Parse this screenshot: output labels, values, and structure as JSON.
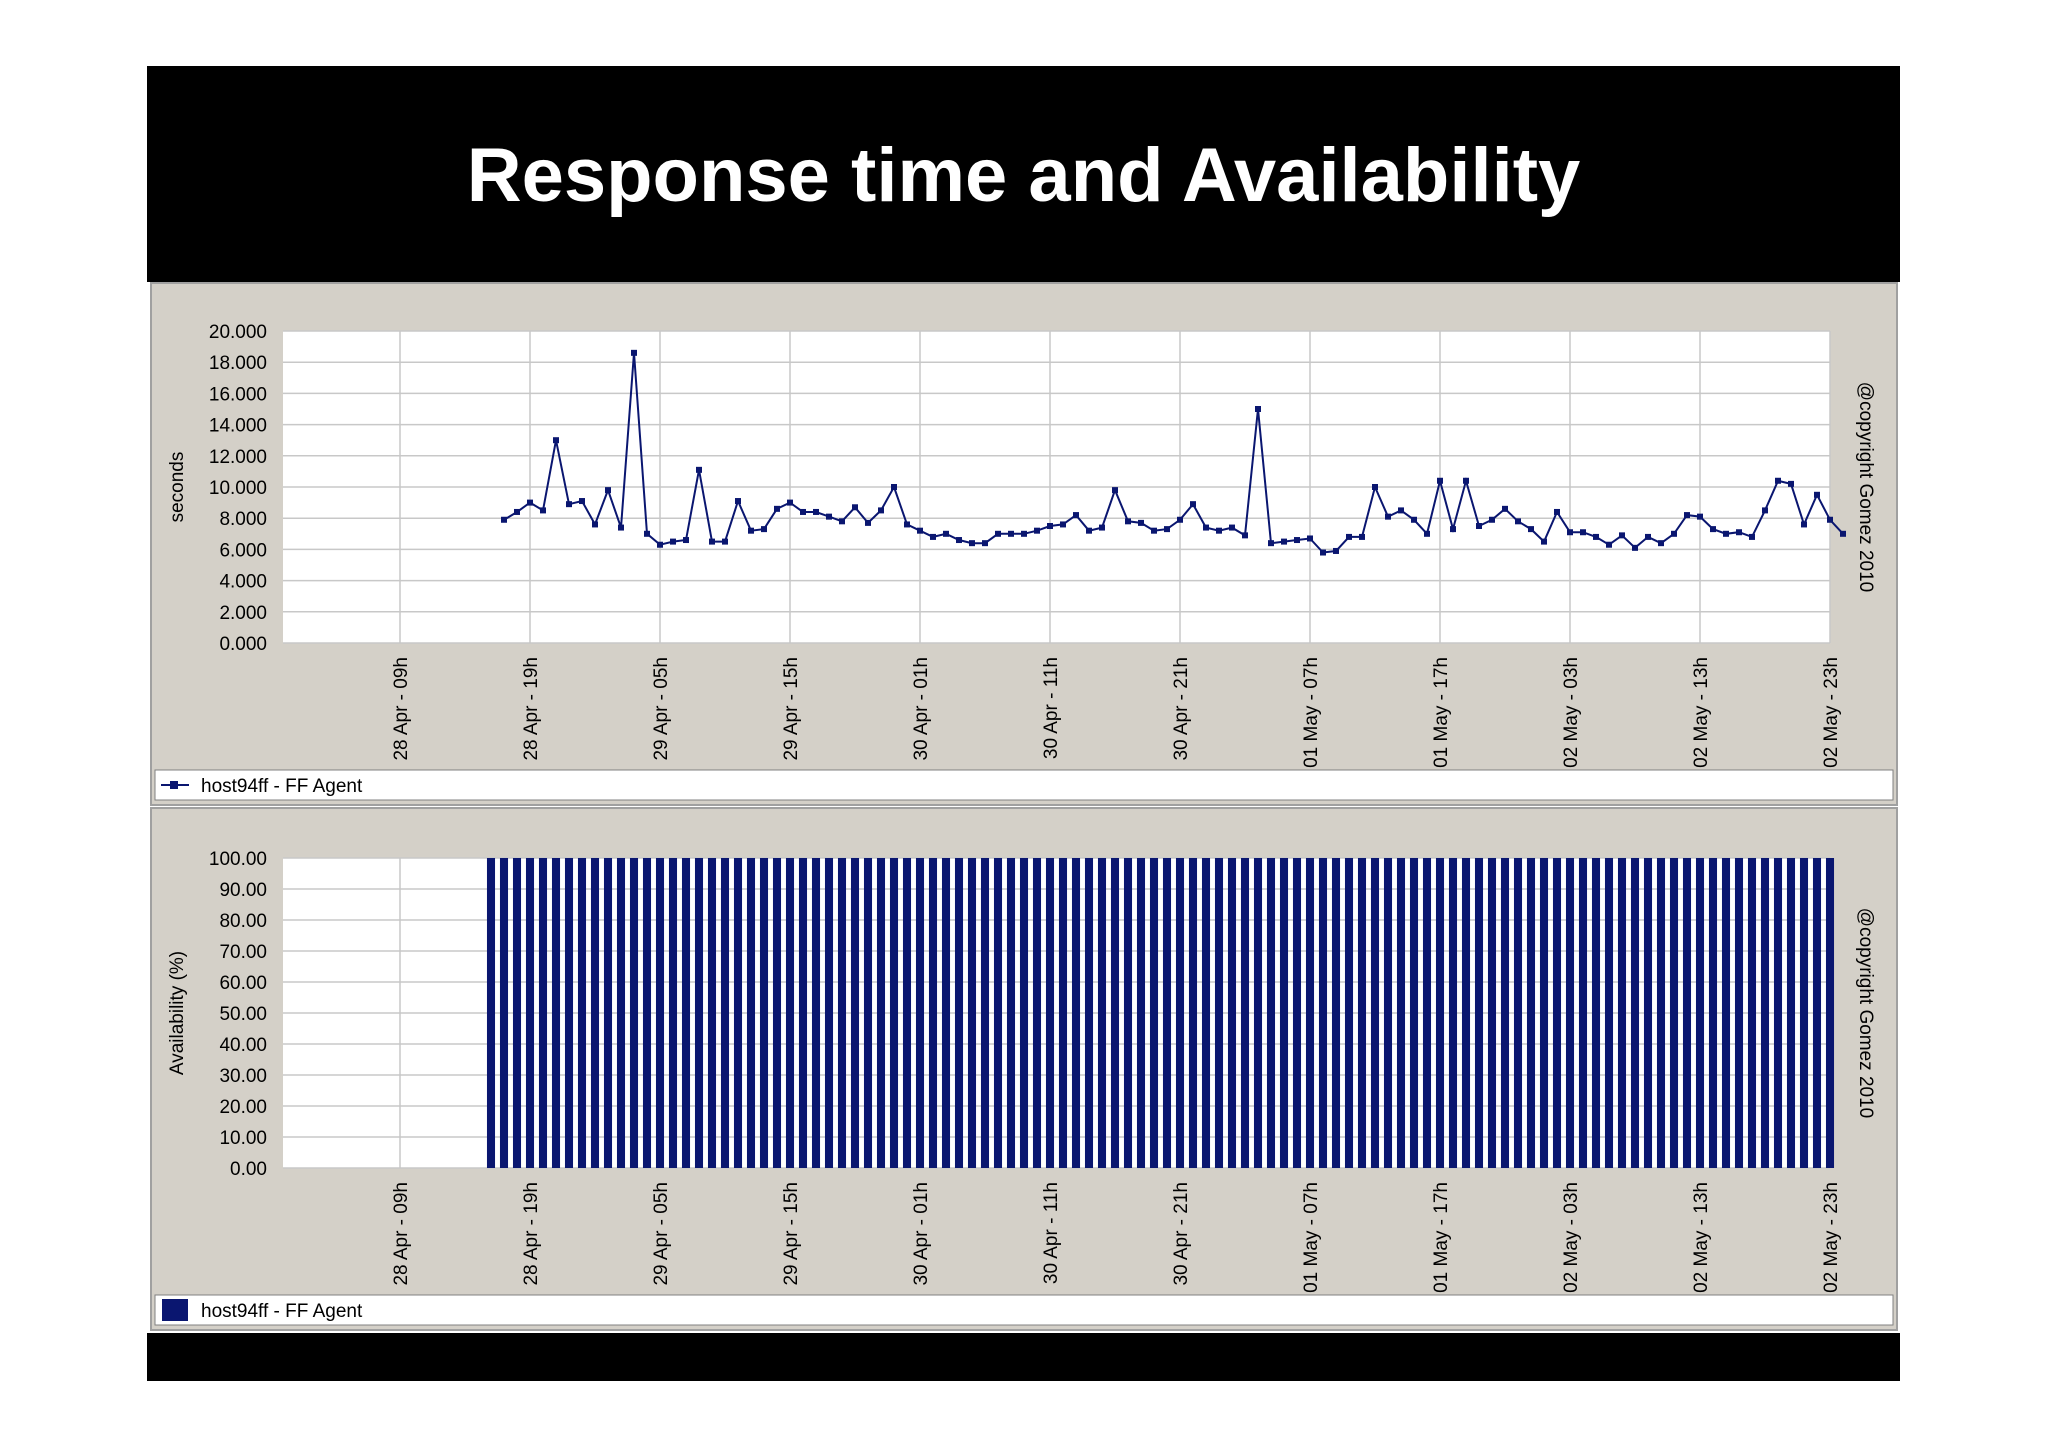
{
  "slide": {
    "title": "Response time and Availability"
  },
  "colors": {
    "series": "#0a1670",
    "panel": "#d4d0c8",
    "grid": "#c8c8c8"
  },
  "chart_data": [
    {
      "type": "line",
      "ylabel": "seconds",
      "ylim": [
        0,
        20
      ],
      "yticks": [
        "20.000",
        "18.000",
        "16.000",
        "14.000",
        "12.000",
        "10.000",
        "8.000",
        "6.000",
        "4.000",
        "2.000",
        "0.000"
      ],
      "xticks": [
        "28 Apr - 09h",
        "28 Apr - 19h",
        "29 Apr - 05h",
        "29 Apr - 15h",
        "30 Apr - 01h",
        "30 Apr - 11h",
        "30 Apr - 21h",
        "01 May - 07h",
        "01 May - 17h",
        "02 May - 03h",
        "02 May - 13h",
        "02 May - 23h"
      ],
      "x_start": "28 Apr - 00h",
      "x_end": "02 May - 23h",
      "copyright": "@copyright Gomez 2010",
      "grid": true,
      "legend": {
        "position": "bottom-left",
        "label": "host94ff - FF Agent"
      },
      "series": [
        {
          "name": "host94ff - FF Agent",
          "points": [
            [
              "28 Apr - 17h",
              7.9
            ],
            [
              "28 Apr - 18h",
              8.4
            ],
            [
              "28 Apr - 19h",
              9.0
            ],
            [
              "28 Apr - 20h",
              8.5
            ],
            [
              "28 Apr - 21h",
              13.0
            ],
            [
              "28 Apr - 22h",
              8.9
            ],
            [
              "28 Apr - 23h",
              9.1
            ],
            [
              "29 Apr - 00h",
              7.6
            ],
            [
              "29 Apr - 01h",
              9.8
            ],
            [
              "29 Apr - 02h",
              7.4
            ],
            [
              "29 Apr - 03h",
              18.6
            ],
            [
              "29 Apr - 04h",
              7.0
            ],
            [
              "29 Apr - 05h",
              6.3
            ],
            [
              "29 Apr - 06h",
              6.5
            ],
            [
              "29 Apr - 07h",
              6.6
            ],
            [
              "29 Apr - 08h",
              11.1
            ],
            [
              "29 Apr - 09h",
              6.5
            ],
            [
              "29 Apr - 10h",
              6.5
            ],
            [
              "29 Apr - 11h",
              9.1
            ],
            [
              "29 Apr - 12h",
              7.2
            ],
            [
              "29 Apr - 13h",
              7.3
            ],
            [
              "29 Apr - 14h",
              8.6
            ],
            [
              "29 Apr - 15h",
              9.0
            ],
            [
              "29 Apr - 16h",
              8.4
            ],
            [
              "29 Apr - 17h",
              8.4
            ],
            [
              "29 Apr - 18h",
              8.1
            ],
            [
              "29 Apr - 19h",
              7.8
            ],
            [
              "29 Apr - 20h",
              8.7
            ],
            [
              "29 Apr - 21h",
              7.7
            ],
            [
              "29 Apr - 22h",
              8.5
            ],
            [
              "29 Apr - 23h",
              10.0
            ],
            [
              "30 Apr - 00h",
              7.6
            ],
            [
              "30 Apr - 01h",
              7.2
            ],
            [
              "30 Apr - 02h",
              6.8
            ],
            [
              "30 Apr - 03h",
              7.0
            ],
            [
              "30 Apr - 04h",
              6.6
            ],
            [
              "30 Apr - 05h",
              6.4
            ],
            [
              "30 Apr - 06h",
              6.4
            ],
            [
              "30 Apr - 07h",
              7.0
            ],
            [
              "30 Apr - 08h",
              7.0
            ],
            [
              "30 Apr - 09h",
              7.0
            ],
            [
              "30 Apr - 10h",
              7.2
            ],
            [
              "30 Apr - 11h",
              7.5
            ],
            [
              "30 Apr - 12h",
              7.6
            ],
            [
              "30 Apr - 13h",
              8.2
            ],
            [
              "30 Apr - 14h",
              7.2
            ],
            [
              "30 Apr - 15h",
              7.4
            ],
            [
              "30 Apr - 16h",
              9.8
            ],
            [
              "30 Apr - 17h",
              7.8
            ],
            [
              "30 Apr - 18h",
              7.7
            ],
            [
              "30 Apr - 19h",
              7.2
            ],
            [
              "30 Apr - 20h",
              7.3
            ],
            [
              "30 Apr - 21h",
              7.9
            ],
            [
              "30 Apr - 22h",
              8.9
            ],
            [
              "30 Apr - 23h",
              7.4
            ],
            [
              "01 May - 00h",
              7.2
            ],
            [
              "01 May - 01h",
              7.4
            ],
            [
              "01 May - 02h",
              6.9
            ],
            [
              "01 May - 03h",
              15.0
            ],
            [
              "01 May - 04h",
              6.4
            ],
            [
              "01 May - 05h",
              6.5
            ],
            [
              "01 May - 06h",
              6.6
            ],
            [
              "01 May - 07h",
              6.7
            ],
            [
              "01 May - 08h",
              5.8
            ],
            [
              "01 May - 09h",
              5.9
            ],
            [
              "01 May - 10h",
              6.8
            ],
            [
              "01 May - 11h",
              6.8
            ],
            [
              "01 May - 12h",
              10.0
            ],
            [
              "01 May - 13h",
              8.1
            ],
            [
              "01 May - 14h",
              8.5
            ],
            [
              "01 May - 15h",
              7.9
            ],
            [
              "01 May - 16h",
              7.0
            ],
            [
              "01 May - 17h",
              10.4
            ],
            [
              "01 May - 18h",
              7.3
            ],
            [
              "01 May - 19h",
              10.4
            ],
            [
              "01 May - 20h",
              7.5
            ],
            [
              "01 May - 21h",
              7.9
            ],
            [
              "01 May - 22h",
              8.6
            ],
            [
              "01 May - 23h",
              7.8
            ],
            [
              "02 May - 00h",
              7.3
            ],
            [
              "02 May - 01h",
              6.5
            ],
            [
              "02 May - 02h",
              8.4
            ],
            [
              "02 May - 03h",
              7.1
            ],
            [
              "02 May - 04h",
              7.1
            ],
            [
              "02 May - 05h",
              6.8
            ],
            [
              "02 May - 06h",
              6.3
            ],
            [
              "02 May - 07h",
              6.9
            ],
            [
              "02 May - 08h",
              6.1
            ],
            [
              "02 May - 09h",
              6.8
            ],
            [
              "02 May - 10h",
              6.4
            ],
            [
              "02 May - 11h",
              7.0
            ],
            [
              "02 May - 12h",
              8.2
            ],
            [
              "02 May - 13h",
              8.1
            ],
            [
              "02 May - 14h",
              7.3
            ],
            [
              "02 May - 15h",
              7.0
            ],
            [
              "02 May - 16h",
              7.1
            ],
            [
              "02 May - 17h",
              6.8
            ],
            [
              "02 May - 18h",
              8.5
            ],
            [
              "02 May - 19h",
              10.4
            ],
            [
              "02 May - 20h",
              10.2
            ],
            [
              "02 May - 21h",
              7.6
            ],
            [
              "02 May - 22h",
              9.5
            ],
            [
              "02 May - 23h",
              7.9
            ],
            [
              "02 May - 24h",
              7.0
            ]
          ]
        }
      ]
    },
    {
      "type": "bar",
      "ylabel": "Availability (%)",
      "ylim": [
        0,
        100
      ],
      "yticks": [
        "100.00",
        "90.00",
        "80.00",
        "70.00",
        "60.00",
        "50.00",
        "40.00",
        "30.00",
        "20.00",
        "10.00",
        "0.00"
      ],
      "xticks": [
        "28 Apr - 09h",
        "28 Apr - 19h",
        "29 Apr - 05h",
        "29 Apr - 15h",
        "30 Apr - 01h",
        "30 Apr - 11h",
        "30 Apr - 21h",
        "01 May - 07h",
        "01 May - 17h",
        "02 May - 03h",
        "02 May - 13h",
        "02 May - 23h"
      ],
      "x_start": "28 Apr - 00h",
      "x_end": "02 May - 23h",
      "bars_from": "28 Apr - 16h",
      "bars_to": "02 May - 23h",
      "bar_value": 100,
      "copyright": "@copyright Gomez 2010",
      "grid": true,
      "legend": {
        "position": "bottom-left",
        "label": "host94ff - FF Agent"
      }
    }
  ]
}
